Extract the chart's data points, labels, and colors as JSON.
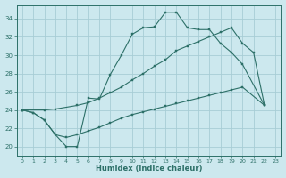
{
  "xlabel": "Humidex (Indice chaleur)",
  "background_color": "#cce8ee",
  "grid_color": "#a8cdd5",
  "line_color": "#2d7068",
  "x_ticks": [
    0,
    1,
    2,
    3,
    4,
    5,
    6,
    7,
    8,
    9,
    10,
    11,
    12,
    13,
    14,
    15,
    16,
    17,
    18,
    19,
    20,
    21,
    22,
    23
  ],
  "y_ticks": [
    20,
    22,
    24,
    26,
    28,
    30,
    32,
    34
  ],
  "xlim": [
    -0.5,
    23.5
  ],
  "ylim": [
    19.0,
    35.5
  ],
  "main_x": [
    0,
    1,
    2,
    3,
    4,
    5,
    6,
    7,
    8,
    9,
    10,
    11,
    12,
    13,
    14,
    15,
    16,
    17,
    18,
    19,
    20,
    22
  ],
  "main_y": [
    24.0,
    23.7,
    22.9,
    21.3,
    20.0,
    20.0,
    25.3,
    25.2,
    27.9,
    30.0,
    32.3,
    33.0,
    33.1,
    34.7,
    34.7,
    33.0,
    32.8,
    32.8,
    31.3,
    30.3,
    29.0,
    24.5
  ],
  "lower_x": [
    0,
    1,
    2,
    3,
    4,
    5,
    6,
    7,
    8,
    9,
    10,
    11,
    12,
    13,
    14,
    15,
    16,
    17,
    18,
    19,
    20,
    22
  ],
  "lower_y": [
    24.0,
    23.7,
    22.9,
    21.3,
    21.0,
    21.3,
    21.7,
    22.1,
    22.6,
    23.1,
    23.5,
    23.8,
    24.1,
    24.4,
    24.7,
    25.0,
    25.3,
    25.6,
    25.9,
    26.2,
    26.5,
    24.5
  ],
  "upper_x": [
    0,
    2,
    3,
    5,
    6,
    7,
    8,
    9,
    10,
    11,
    12,
    13,
    14,
    15,
    16,
    17,
    18,
    19,
    20,
    21,
    22
  ],
  "upper_y": [
    24.0,
    24.0,
    24.1,
    24.5,
    24.8,
    25.3,
    25.9,
    26.5,
    27.3,
    28.0,
    28.8,
    29.5,
    30.5,
    31.0,
    31.5,
    32.0,
    32.5,
    33.0,
    31.3,
    30.3,
    24.5
  ]
}
